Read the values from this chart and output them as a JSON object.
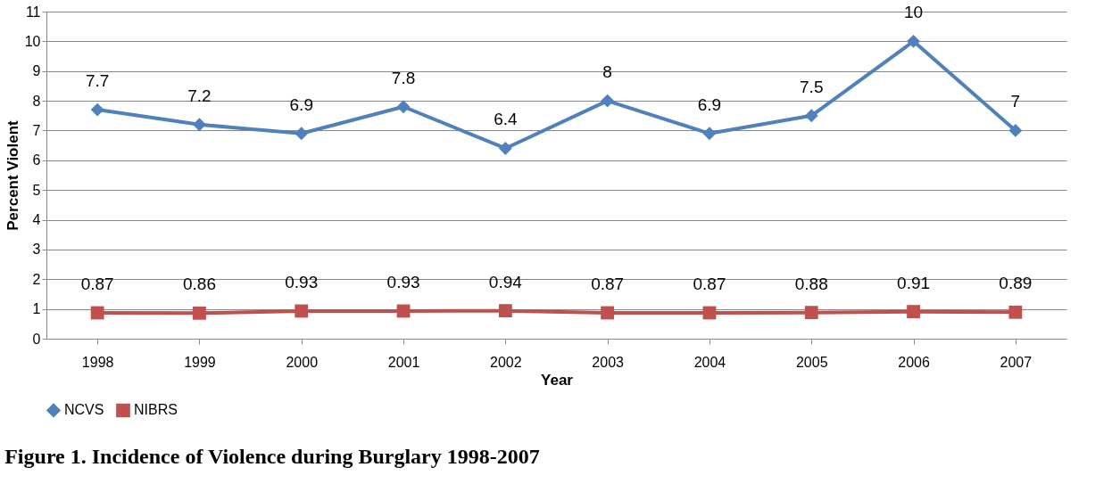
{
  "chart_data": {
    "type": "line",
    "title": "Figure 1. Incidence of Violence during Burglary 1998-2007",
    "xlabel": "Year",
    "ylabel": "Percent Violent",
    "categories": [
      "1998",
      "1999",
      "2000",
      "2001",
      "2002",
      "2003",
      "2004",
      "2005",
      "2006",
      "2007"
    ],
    "series": [
      {
        "name": "NCVS",
        "color": "#4f81bd",
        "marker": "diamond",
        "values": [
          7.7,
          7.2,
          6.9,
          7.8,
          6.4,
          8,
          6.9,
          7.5,
          10,
          7
        ]
      },
      {
        "name": "NIBRS",
        "color": "#c0504d",
        "marker": "square",
        "values": [
          0.87,
          0.86,
          0.93,
          0.93,
          0.94,
          0.87,
          0.87,
          0.88,
          0.91,
          0.89
        ]
      }
    ],
    "ylim": [
      0,
      11
    ],
    "yticks": [
      0,
      1,
      2,
      3,
      4,
      5,
      6,
      7,
      8,
      9,
      10,
      11
    ],
    "grid": "y",
    "legend": "bottom",
    "data_labels": true
  }
}
